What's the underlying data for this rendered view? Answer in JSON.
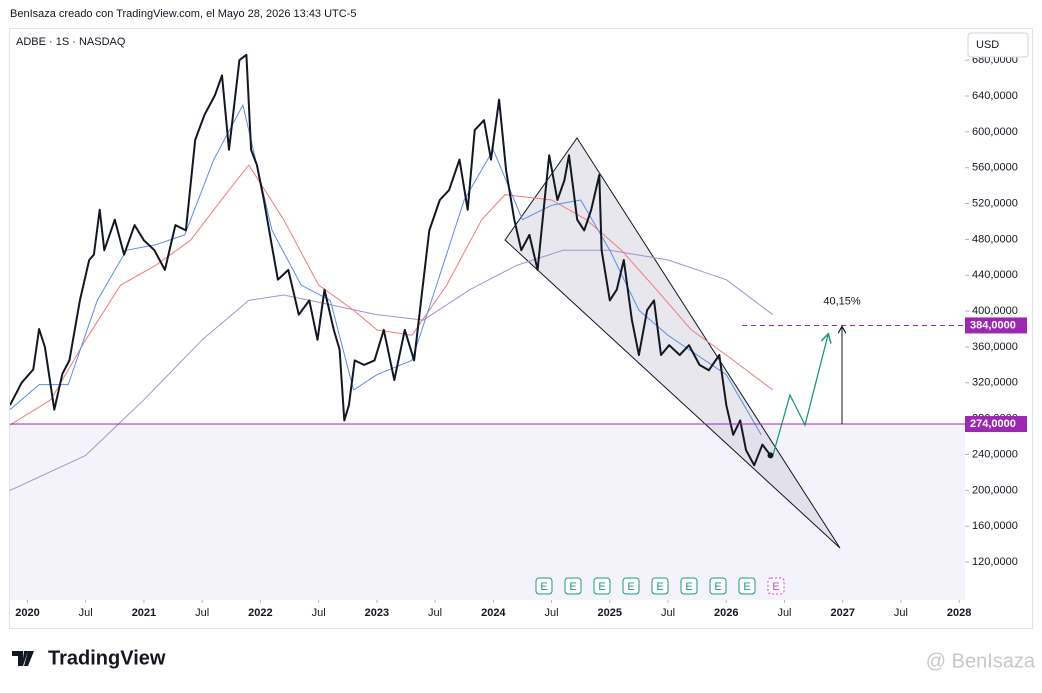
{
  "header": {
    "credit": "BenIsaza creado con TradingView.com, el Mayo 28, 2026 13:43 UTC-5",
    "logo": "TradingView",
    "watermark": "@ BenIsaza"
  },
  "chart_data": {
    "type": "line",
    "symbol": "ADBE · 1S · NASDAQ",
    "currency": "USD",
    "xlim": [
      2019.85,
      2028.05
    ],
    "xticks": [
      {
        "value": 2020,
        "label": "2020"
      },
      {
        "value": 2020.5,
        "label": "Jul"
      },
      {
        "value": 2021,
        "label": "2021"
      },
      {
        "value": 2021.5,
        "label": "Jul"
      },
      {
        "value": 2022,
        "label": "2022"
      },
      {
        "value": 2022.5,
        "label": "Jul"
      },
      {
        "value": 2023,
        "label": "2023"
      },
      {
        "value": 2023.5,
        "label": "Jul"
      },
      {
        "value": 2024,
        "label": "2024"
      },
      {
        "value": 2024.5,
        "label": "Jul"
      },
      {
        "value": 2025,
        "label": "2025"
      },
      {
        "value": 2025.5,
        "label": "Jul"
      },
      {
        "value": 2026,
        "label": "2026"
      },
      {
        "value": 2026.5,
        "label": "Jul"
      },
      {
        "value": 2027,
        "label": "2027"
      },
      {
        "value": 2027.5,
        "label": "Jul"
      },
      {
        "value": 2028,
        "label": "2028"
      }
    ],
    "ylim": [
      78,
      692
    ],
    "yticks": [
      {
        "value": 120,
        "label": "120,0000"
      },
      {
        "value": 160,
        "label": "160,0000"
      },
      {
        "value": 200,
        "label": "200,0000"
      },
      {
        "value": 240,
        "label": "240,0000"
      },
      {
        "value": 280,
        "label": "280,0000"
      },
      {
        "value": 320,
        "label": "320,0000"
      },
      {
        "value": 360,
        "label": "360,0000"
      },
      {
        "value": 400,
        "label": "400,0000"
      },
      {
        "value": 440,
        "label": "440,0000"
      },
      {
        "value": 480,
        "label": "480,0000"
      },
      {
        "value": 520,
        "label": "520,0000"
      },
      {
        "value": 560,
        "label": "560,0000"
      },
      {
        "value": 600,
        "label": "600,0000"
      },
      {
        "value": 640,
        "label": "640,0000"
      },
      {
        "value": 680,
        "label": "680,0000"
      }
    ],
    "series": [
      {
        "color": "#131722",
        "x": [
          2019.85,
          2019.95,
          2020.05,
          2020.1,
          2020.15,
          2020.23,
          2020.3,
          2020.36,
          2020.45,
          2020.53,
          2020.57,
          2020.62,
          2020.66,
          2020.75,
          2020.83,
          2020.92,
          2021.0,
          2021.09,
          2021.18,
          2021.27,
          2021.36,
          2021.44,
          2021.52,
          2021.61,
          2021.67,
          2021.73,
          2021.82,
          2021.88,
          2021.92,
          2021.97,
          2022.03,
          2022.09,
          2022.15,
          2022.24,
          2022.33,
          2022.42,
          2022.49,
          2022.55,
          2022.63,
          2022.68,
          2022.72,
          2022.76,
          2022.81,
          2022.89,
          2022.98,
          2023.06,
          2023.15,
          2023.24,
          2023.32,
          2023.38,
          2023.45,
          2023.54,
          2023.62,
          2023.71,
          2023.78,
          2023.84,
          2023.92,
          2023.98,
          2024.05,
          2024.11,
          2024.18,
          2024.24,
          2024.31,
          2024.38,
          2024.44,
          2024.48,
          2024.55,
          2024.61,
          2024.65,
          2024.72,
          2024.78,
          2024.84,
          2024.91,
          2024.93,
          2025.0,
          2025.06,
          2025.12,
          2025.19,
          2025.25,
          2025.32,
          2025.38,
          2025.44,
          2025.51,
          2025.6,
          2025.68,
          2025.77,
          2025.85,
          2025.94,
          2026.0,
          2026.06,
          2026.12,
          2026.17,
          2026.24,
          2026.31,
          2026.38
        ],
        "values": [
          295,
          320,
          335,
          380,
          360,
          290,
          330,
          345,
          412,
          457,
          463,
          513,
          468,
          502,
          463,
          496,
          479,
          468,
          446,
          496,
          490,
          591,
          619,
          641,
          663,
          580,
          680,
          686,
          580,
          563,
          524,
          479,
          435,
          446,
          396,
          412,
          368,
          424,
          379,
          357,
          278,
          295,
          345,
          340,
          345,
          379,
          323,
          379,
          345,
          412,
          490,
          524,
          535,
          569,
          513,
          602,
          613,
          569,
          636,
          557,
          502,
          468,
          485,
          446,
          524,
          574,
          524,
          546,
          574,
          502,
          490,
          513,
          552,
          468,
          412,
          424,
          457,
          390,
          351,
          401,
          412,
          351,
          362,
          351,
          362,
          340,
          334,
          351,
          295,
          262,
          278,
          245,
          228,
          251,
          239
        ]
      },
      {
        "color": "#5b8ee6",
        "x": [
          2019.85,
          2020.1,
          2020.35,
          2020.6,
          2020.85,
          2021.1,
          2021.35,
          2021.6,
          2021.85,
          2022.1,
          2022.35,
          2022.6,
          2022.8,
          2023.0,
          2023.3,
          2023.5,
          2023.75,
          2024.0,
          2024.25,
          2024.5,
          2024.75,
          2025.0,
          2025.25,
          2025.5,
          2025.75,
          2026.0,
          2026.3
        ],
        "values": [
          290,
          318,
          318,
          412,
          468,
          474,
          485,
          569,
          630,
          490,
          429,
          412,
          312,
          329,
          345,
          424,
          524,
          580,
          502,
          518,
          524,
          468,
          401,
          373,
          351,
          329,
          262
        ]
      },
      {
        "color": "#ef7b7b",
        "x": [
          2019.85,
          2020.2,
          2020.5,
          2020.8,
          2021.1,
          2021.4,
          2021.7,
          2021.9,
          2022.2,
          2022.5,
          2022.8,
          2023.0,
          2023.3,
          2023.6,
          2023.9,
          2024.1,
          2024.5,
          2024.8,
          2025.1,
          2025.4,
          2025.7,
          2026.0,
          2026.4
        ],
        "values": [
          273,
          301,
          368,
          429,
          451,
          479,
          530,
          563,
          502,
          429,
          401,
          379,
          373,
          429,
          502,
          530,
          524,
          502,
          468,
          424,
          379,
          351,
          312
        ]
      },
      {
        "color": "#a493cc",
        "x": [
          2019.85,
          2020.5,
          2021.0,
          2021.5,
          2021.9,
          2022.2,
          2022.6,
          2023.0,
          2023.4,
          2023.8,
          2024.2,
          2024.6,
          2025.0,
          2025.5,
          2026.0,
          2026.4
        ],
        "values": [
          200,
          239,
          301,
          368,
          412,
          418,
          407,
          396,
          390,
          424,
          451,
          468,
          468,
          457,
          435,
          396
        ]
      }
    ],
    "levels": [
      {
        "value": 274,
        "label": "274,0000",
        "color": "#9c27b0"
      },
      {
        "value": 384,
        "label": "384,0000",
        "color": "#9c27b0"
      }
    ],
    "percent_label": "40,15%",
    "earnings_icon": "E"
  }
}
